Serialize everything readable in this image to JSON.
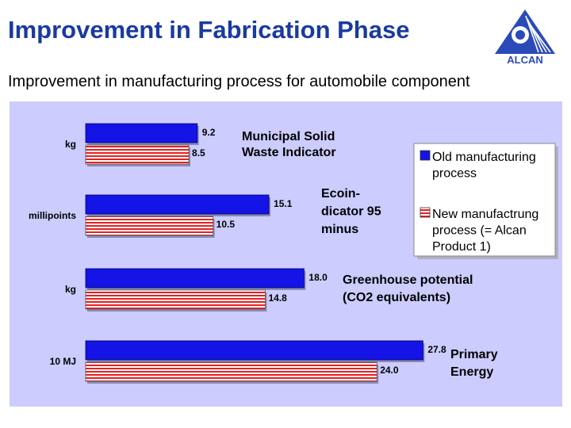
{
  "slide": {
    "title": "Improvement in Fabrication Phase",
    "subtitle": "Improvement in manufacturing process for automobile component",
    "logo_text": "ALCAN"
  },
  "colors": {
    "title": "#1a3aa0",
    "panel_bg": "#ccccff",
    "old_bar": "#1414e6",
    "new_bar_stripe": "#e82020",
    "new_bar_gap": "#ffffff",
    "logo": "#2a4ab8"
  },
  "chart_data": {
    "type": "bar",
    "orientation": "horizontal",
    "grid": false,
    "legend_placement": "right",
    "title": "",
    "xlabel": "",
    "ylabel": "",
    "xlim": [
      0,
      30
    ],
    "categories": [
      {
        "label": "Municipal Solid Waste Indicator",
        "label_lines": [
          "Municipal Solid",
          "Waste Indicator"
        ],
        "unit": "kg"
      },
      {
        "label": "Ecoin-dicator 95 minus",
        "label_lines": [
          "Ecoin-",
          "dicator 95",
          "minus"
        ],
        "unit": "millipoints"
      },
      {
        "label": "Greenhouse potential (CO2 equivalents)",
        "label_lines": [
          "Greenhouse potential",
          "(CO2 equivalents)"
        ],
        "unit": "kg"
      },
      {
        "label": "Primary Energy",
        "label_lines": [
          "Primary",
          "Energy"
        ],
        "unit": "10 MJ"
      }
    ],
    "series": [
      {
        "name": "Old manufacturing process",
        "legend_lines": [
          "Old manufacturing",
          "process"
        ],
        "values": [
          9.2,
          15.1,
          18.0,
          27.8
        ],
        "value_labels": [
          "9.2",
          "15.1",
          "18.0",
          "27.8"
        ]
      },
      {
        "name": "New manufactrung process (= Alcan Product 1)",
        "legend_lines": [
          "New manufactrung",
          "process (= Alcan",
          "Product 1)"
        ],
        "values": [
          8.5,
          10.5,
          14.8,
          24.0
        ],
        "value_labels": [
          "8.5",
          "10.5",
          "14.8",
          "24.0"
        ]
      }
    ]
  }
}
